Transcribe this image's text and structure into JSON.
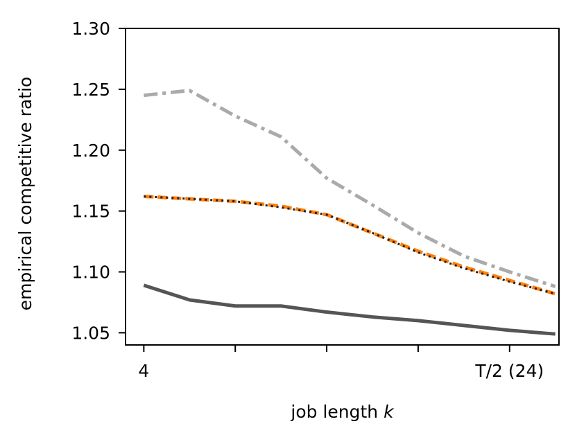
{
  "chart_data": {
    "type": "line",
    "xlabel_text": "job length ",
    "xlabel_var": "k",
    "ylabel": "empirical competitive ratio",
    "xlim": [
      3,
      26.7
    ],
    "ylim": [
      1.04,
      1.3
    ],
    "xticks": [
      4,
      9,
      14,
      19,
      24
    ],
    "xtick_labels": [
      "4",
      "",
      "",
      "",
      "T/2 (24)"
    ],
    "yticks": [
      1.05,
      1.1,
      1.15,
      1.2,
      1.25,
      1.3
    ],
    "ytick_labels": [
      "1.05",
      "1.10",
      "1.15",
      "1.20",
      "1.25",
      "1.30"
    ],
    "grid": false,
    "series": [
      {
        "color": "#aaaaaa",
        "style": "dashdot",
        "x": [
          4,
          6.5,
          9,
          11.5,
          14,
          16.5,
          19,
          21.5,
          24,
          26.5
        ],
        "y": [
          1.245,
          1.249,
          1.228,
          1.211,
          1.177,
          1.155,
          1.132,
          1.113,
          1.1,
          1.088
        ]
      },
      {
        "color": "#ff7f0e",
        "style": "dashed",
        "x": [
          4,
          6.5,
          9,
          11.5,
          14,
          16.5,
          19,
          21.5,
          24,
          26.5
        ],
        "y": [
          1.162,
          1.16,
          1.158,
          1.154,
          1.147,
          1.132,
          1.117,
          1.104,
          1.093,
          1.082
        ]
      },
      {
        "color": "#1f1f1f",
        "style": "dotted",
        "x": [
          4,
          6.5,
          9,
          11.5,
          14,
          16.5,
          19,
          21.5,
          24,
          26.5
        ],
        "y": [
          1.162,
          1.16,
          1.158,
          1.153,
          1.147,
          1.132,
          1.116,
          1.103,
          1.092,
          1.082
        ]
      },
      {
        "color": "#555555",
        "style": "solid",
        "x": [
          4,
          6.5,
          9,
          11.5,
          14,
          16.5,
          19,
          21.5,
          24,
          26.5
        ],
        "y": [
          1.089,
          1.077,
          1.072,
          1.072,
          1.067,
          1.063,
          1.06,
          1.056,
          1.052,
          1.049
        ]
      }
    ]
  }
}
